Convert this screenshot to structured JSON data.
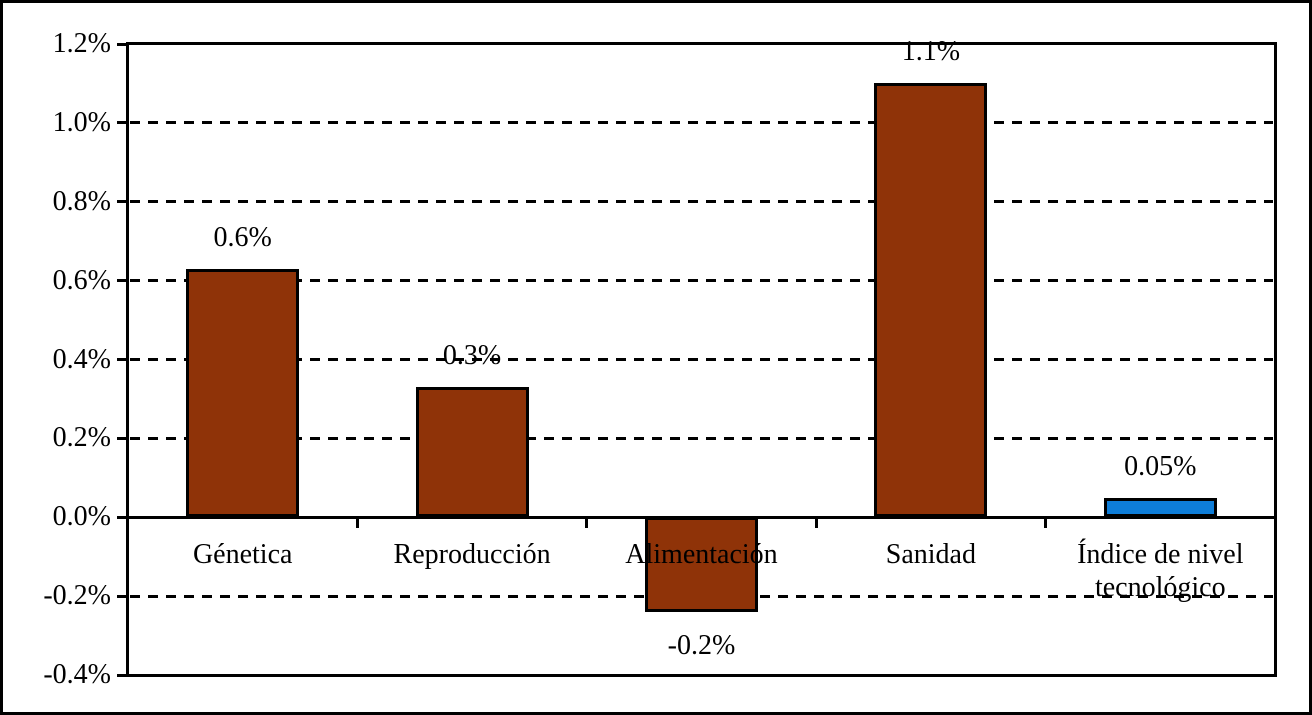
{
  "chart_data": {
    "type": "bar",
    "title": "",
    "xlabel": "",
    "ylabel": "",
    "categories": [
      "Génetica",
      "Reproducción",
      "Alimentación",
      "Sanidad",
      "Índice de nivel tecnológico"
    ],
    "values": [
      0.63,
      0.33,
      -0.24,
      1.1,
      0.05
    ],
    "data_labels": [
      "0.6%",
      "0.3%",
      "-0.2%",
      "1.1%",
      "0.05%"
    ],
    "bar_colors": [
      "#8F3308",
      "#8F3308",
      "#8F3308",
      "#8F3308",
      "#0E7DD8"
    ],
    "bar_border_color": "#000000",
    "axis_color": "#000000",
    "ylim": [
      -0.4,
      1.2
    ],
    "ytick_step": 0.2,
    "ytick_labels": [
      "1.2%",
      "1.0%",
      "0.8%",
      "0.6%",
      "0.4%",
      "0.2%",
      "0.0%",
      "-0.2%",
      "-0.4%"
    ],
    "grid": "horizontal-dashed",
    "legend_position": "none"
  }
}
